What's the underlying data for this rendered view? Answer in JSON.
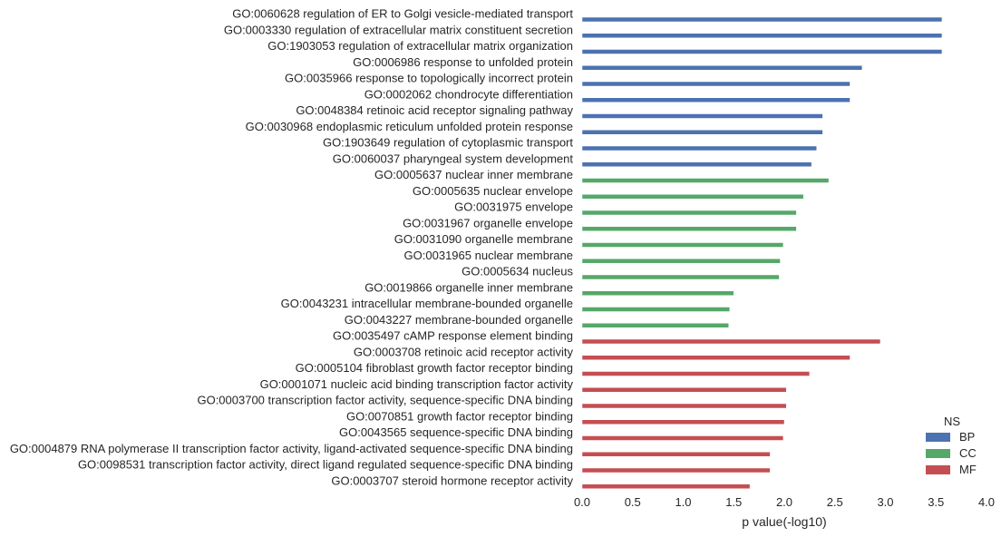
{
  "chart_data": {
    "type": "bar",
    "orientation": "horizontal",
    "title": "",
    "xlabel": "p value(-log10)",
    "ylabel": "",
    "xlim": [
      0,
      4
    ],
    "xticks": [
      "0.0",
      "0.5",
      "1.0",
      "1.5",
      "2.0",
      "2.5",
      "3.0",
      "3.5",
      "4.0"
    ],
    "grid": false,
    "legend": {
      "title": "NS",
      "placement": "bottom-right",
      "entries": [
        {
          "name": "BP",
          "color": "#4c72b0"
        },
        {
          "name": "CC",
          "color": "#55a868"
        },
        {
          "name": "MF",
          "color": "#c44e52"
        }
      ]
    },
    "categories": [
      {
        "label": "GO:0060628 regulation of ER to Golgi vesicle-mediated transport",
        "value": 3.56,
        "ns": "BP"
      },
      {
        "label": "GO:0003330 regulation of extracellular matrix constituent secretion",
        "value": 3.56,
        "ns": "BP"
      },
      {
        "label": "GO:1903053 regulation of extracellular matrix organization",
        "value": 3.56,
        "ns": "BP"
      },
      {
        "label": "GO:0006986 response to unfolded protein",
        "value": 2.77,
        "ns": "BP"
      },
      {
        "label": "GO:0035966 response to topologically incorrect protein",
        "value": 2.65,
        "ns": "BP"
      },
      {
        "label": "GO:0002062 chondrocyte differentiation",
        "value": 2.65,
        "ns": "BP"
      },
      {
        "label": "GO:0048384 retinoic acid receptor signaling pathway",
        "value": 2.38,
        "ns": "BP"
      },
      {
        "label": "GO:0030968 endoplasmic reticulum unfolded protein response",
        "value": 2.38,
        "ns": "BP"
      },
      {
        "label": "GO:1903649 regulation of cytoplasmic transport",
        "value": 2.32,
        "ns": "BP"
      },
      {
        "label": "GO:0060037 pharyngeal system development",
        "value": 2.27,
        "ns": "BP"
      },
      {
        "label": "GO:0005637 nuclear inner membrane",
        "value": 2.44,
        "ns": "CC"
      },
      {
        "label": "GO:0005635 nuclear envelope",
        "value": 2.19,
        "ns": "CC"
      },
      {
        "label": "GO:0031975 envelope",
        "value": 2.12,
        "ns": "CC"
      },
      {
        "label": "GO:0031967 organelle envelope",
        "value": 2.12,
        "ns": "CC"
      },
      {
        "label": "GO:0031090 organelle membrane",
        "value": 1.99,
        "ns": "CC"
      },
      {
        "label": "GO:0031965 nuclear membrane",
        "value": 1.96,
        "ns": "CC"
      },
      {
        "label": "GO:0005634 nucleus",
        "value": 1.95,
        "ns": "CC"
      },
      {
        "label": "GO:0019866 organelle inner membrane",
        "value": 1.5,
        "ns": "CC"
      },
      {
        "label": "GO:0043231 intracellular membrane-bounded organelle",
        "value": 1.46,
        "ns": "CC"
      },
      {
        "label": "GO:0043227 membrane-bounded organelle",
        "value": 1.45,
        "ns": "CC"
      },
      {
        "label": "GO:0035497 cAMP response element binding",
        "value": 2.95,
        "ns": "MF"
      },
      {
        "label": "GO:0003708 retinoic acid receptor activity",
        "value": 2.65,
        "ns": "MF"
      },
      {
        "label": "GO:0005104 fibroblast growth factor receptor binding",
        "value": 2.25,
        "ns": "MF"
      },
      {
        "label": "GO:0001071 nucleic acid binding transcription factor activity",
        "value": 2.02,
        "ns": "MF"
      },
      {
        "label": "GO:0003700 transcription factor activity, sequence-specific DNA binding",
        "value": 2.02,
        "ns": "MF"
      },
      {
        "label": "GO:0070851 growth factor receptor binding",
        "value": 2.0,
        "ns": "MF"
      },
      {
        "label": "GO:0043565 sequence-specific DNA binding",
        "value": 1.99,
        "ns": "MF"
      },
      {
        "label": "GO:0004879 RNA polymerase II transcription factor activity, ligand-activated sequence-specific DNA binding",
        "value": 1.86,
        "ns": "MF"
      },
      {
        "label": "GO:0098531 transcription factor activity, direct ligand regulated sequence-specific DNA binding",
        "value": 1.86,
        "ns": "MF"
      },
      {
        "label": "GO:0003707 steroid hormone receptor activity",
        "value": 1.66,
        "ns": "MF"
      }
    ]
  }
}
